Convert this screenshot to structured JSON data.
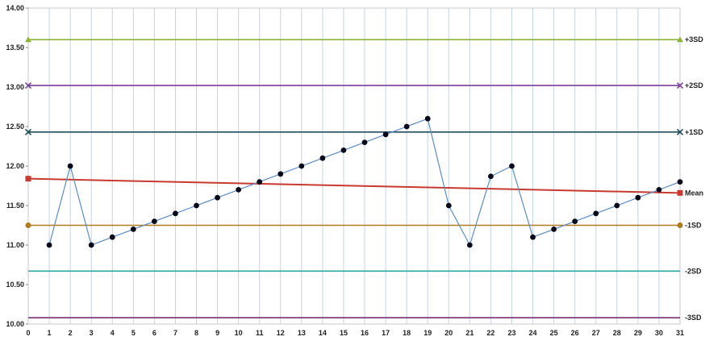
{
  "chart_data": {
    "type": "line",
    "title": "",
    "xlabel": "",
    "ylabel": "",
    "xlim": [
      0,
      31
    ],
    "ylim": [
      10.0,
      14.0
    ],
    "x_ticks": [
      "0",
      "1",
      "2",
      "3",
      "4",
      "5",
      "6",
      "7",
      "8",
      "9",
      "10",
      "11",
      "12",
      "13",
      "14",
      "15",
      "16",
      "17",
      "18",
      "19",
      "20",
      "21",
      "22",
      "23",
      "24",
      "25",
      "26",
      "27",
      "28",
      "29",
      "30",
      "31"
    ],
    "y_ticks": [
      "10.00",
      "10.50",
      "11.00",
      "11.50",
      "12.00",
      "12.50",
      "13.00",
      "13.50",
      "14.00"
    ],
    "grid": "vertical",
    "series": [
      {
        "name": "",
        "color": "#5b8cc6",
        "marker_color": "#0a0a1a",
        "x": [
          1,
          2,
          3,
          4,
          5,
          6,
          7,
          8,
          9,
          10,
          11,
          12,
          13,
          14,
          15,
          16,
          17,
          18,
          19,
          20,
          21,
          22,
          23,
          24,
          25,
          26,
          27,
          28,
          29,
          30,
          31
        ],
        "values": [
          11.0,
          12.0,
          11.0,
          11.1,
          11.2,
          11.3,
          11.4,
          11.5,
          11.6,
          11.7,
          11.8,
          11.9,
          12.0,
          12.1,
          12.2,
          12.3,
          12.4,
          12.5,
          12.6,
          11.5,
          11.0,
          11.87,
          12.0,
          11.1,
          11.2,
          11.3,
          11.4,
          11.5,
          11.6,
          11.7,
          11.8
        ]
      }
    ],
    "reference_lines": [
      {
        "label": "+3SD",
        "color": "#8db33a",
        "marker": "triangle",
        "start": [
          0,
          13.6
        ],
        "end": [
          31,
          13.6
        ]
      },
      {
        "label": "+2SD",
        "color": "#7a3f96",
        "marker": "x",
        "start": [
          0,
          13.02
        ],
        "end": [
          31,
          13.02
        ]
      },
      {
        "label": "+1SD",
        "color": "#1f4e5a",
        "marker": "x",
        "start": [
          0,
          12.43
        ],
        "end": [
          31,
          12.43
        ]
      },
      {
        "label": "Mean",
        "color": "#c83a30",
        "marker": "square",
        "start": [
          0,
          11.84
        ],
        "end": [
          31,
          11.66
        ]
      },
      {
        "label": "-1SD",
        "color": "#b07a1e",
        "marker": "circle",
        "start": [
          0,
          11.25
        ],
        "end": [
          31,
          11.25
        ]
      },
      {
        "label": "-2SD",
        "color": "#2aa7a0",
        "marker": "none",
        "start": [
          0,
          10.67
        ],
        "end": [
          31,
          10.67
        ]
      },
      {
        "label": "-3SD",
        "color": "#7a2f6e",
        "marker": "none",
        "start": [
          0,
          10.08
        ],
        "end": [
          31,
          10.08
        ]
      }
    ]
  }
}
